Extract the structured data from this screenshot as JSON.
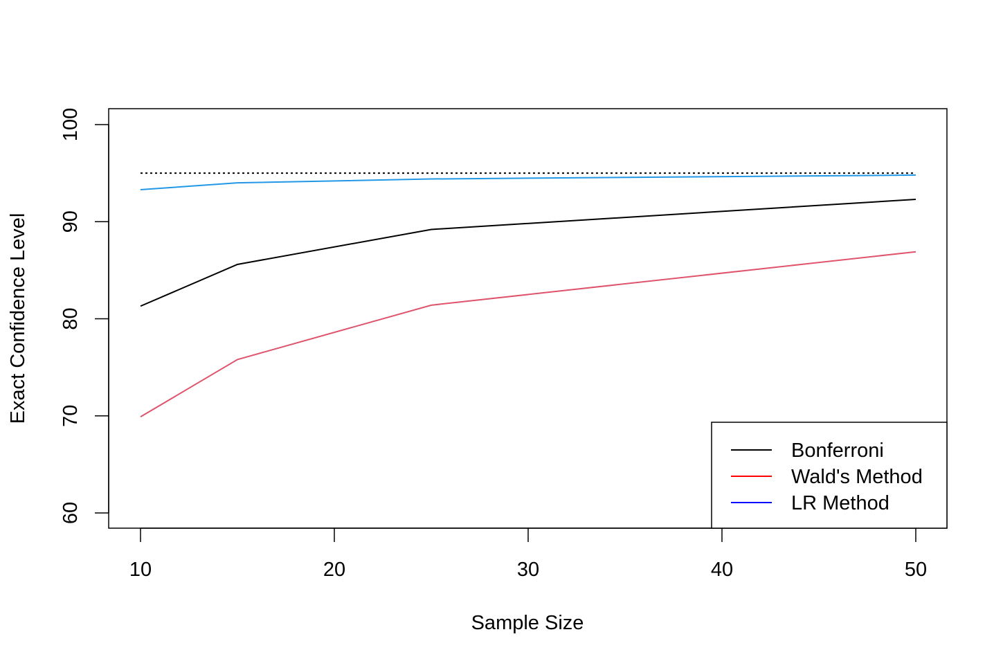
{
  "chart_data": {
    "type": "line",
    "title": "",
    "xlabel": "Sample Size",
    "ylabel": "Exact Confidence Level",
    "x": [
      10,
      15,
      25,
      50
    ],
    "xlim": [
      10,
      50
    ],
    "ylim": [
      60,
      100
    ],
    "xticks": [
      "10",
      "20",
      "30",
      "40",
      "50"
    ],
    "yticks": [
      "60",
      "70",
      "80",
      "90",
      "100"
    ],
    "grid": false,
    "reference_line": {
      "y": 95,
      "style": "dotted",
      "color": "#000000"
    },
    "series": [
      {
        "name": "Bonferroni",
        "values": [
          81.3,
          85.6,
          89.2,
          92.3
        ],
        "color": "#000000",
        "legend_color": "#000000"
      },
      {
        "name": "Wald's Method",
        "values": [
          69.9,
          75.8,
          81.4,
          86.9
        ],
        "color": "#DF536B",
        "legend_color": "#FF0000"
      },
      {
        "name": "LR Method",
        "values": [
          93.3,
          94.0,
          94.4,
          94.8
        ],
        "color": "#2297E6",
        "legend_color": "#0000FF"
      }
    ],
    "legend_position": "bottom-right"
  }
}
